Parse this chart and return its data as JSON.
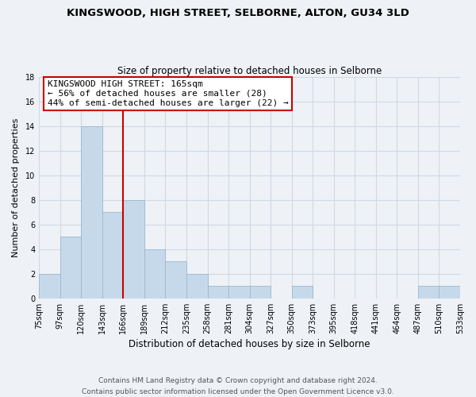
{
  "title": "KINGSWOOD, HIGH STREET, SELBORNE, ALTON, GU34 3LD",
  "subtitle": "Size of property relative to detached houses in Selborne",
  "xlabel": "Distribution of detached houses by size in Selborne",
  "ylabel": "Number of detached properties",
  "bin_labels": [
    "75sqm",
    "97sqm",
    "120sqm",
    "143sqm",
    "166sqm",
    "189sqm",
    "212sqm",
    "235sqm",
    "258sqm",
    "281sqm",
    "304sqm",
    "327sqm",
    "350sqm",
    "373sqm",
    "395sqm",
    "418sqm",
    "441sqm",
    "464sqm",
    "487sqm",
    "510sqm",
    "533sqm"
  ],
  "bar_heights": [
    2,
    5,
    14,
    7,
    8,
    4,
    3,
    2,
    1,
    1,
    1,
    0,
    1,
    0,
    0,
    0,
    0,
    0,
    1,
    1
  ],
  "bar_color": "#c6d9ea",
  "bar_edge_color": "#9ab8d0",
  "vline_color": "#cc0000",
  "annotation_line1": "KINGSWOOD HIGH STREET: 165sqm",
  "annotation_line2": "← 56% of detached houses are smaller (28)",
  "annotation_line3": "44% of semi-detached houses are larger (22) →",
  "annotation_box_color": "#ffffff",
  "annotation_box_edge": "#cc0000",
  "ylim": [
    0,
    18
  ],
  "yticks": [
    0,
    2,
    4,
    6,
    8,
    10,
    12,
    14,
    16,
    18
  ],
  "footer_line1": "Contains HM Land Registry data © Crown copyright and database right 2024.",
  "footer_line2": "Contains public sector information licensed under the Open Government Licence v3.0.",
  "bg_color": "#eef2f7",
  "grid_color": "#d0d8e4",
  "title_fontsize": 9.5,
  "subtitle_fontsize": 8.5,
  "xlabel_fontsize": 8.5,
  "ylabel_fontsize": 8,
  "tick_fontsize": 7,
  "annot_fontsize": 8,
  "footer_fontsize": 6.5
}
